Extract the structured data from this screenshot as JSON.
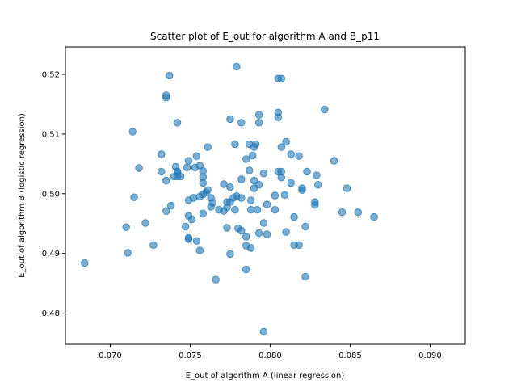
{
  "chart_data": {
    "type": "scatter",
    "title": "Scatter plot of E_out for algorithm A and B_p11",
    "xlabel": "E_out of algorithm A (linear regression)",
    "ylabel": "E_out of algorithm B (logistic regression)",
    "xlim": [
      0.0672,
      0.0922
    ],
    "ylim": [
      0.4748,
      0.5246
    ],
    "xticks": [
      0.07,
      0.075,
      0.08,
      0.085,
      0.09
    ],
    "xtick_labels": [
      "0.070",
      "0.075",
      "0.080",
      "0.085",
      "0.090"
    ],
    "yticks": [
      0.48,
      0.49,
      0.5,
      0.51,
      0.52
    ],
    "ytick_labels": [
      "0.48",
      "0.49",
      "0.50",
      "0.51",
      "0.52"
    ],
    "grid": false,
    "marker_color": "#1f77b4",
    "marker_alpha": 0.6,
    "points": [
      [
        0.0684,
        0.4884
      ],
      [
        0.071,
        0.4944
      ],
      [
        0.0711,
        0.4901
      ],
      [
        0.0714,
        0.5104
      ],
      [
        0.0715,
        0.4994
      ],
      [
        0.0718,
        0.5043
      ],
      [
        0.0722,
        0.4951
      ],
      [
        0.0727,
        0.4914
      ],
      [
        0.0732,
        0.5066
      ],
      [
        0.0732,
        0.5037
      ],
      [
        0.0735,
        0.5165
      ],
      [
        0.0735,
        0.5161
      ],
      [
        0.0735,
        0.5022
      ],
      [
        0.0735,
        0.4971
      ],
      [
        0.0737,
        0.5198
      ],
      [
        0.0738,
        0.498
      ],
      [
        0.074,
        0.5029
      ],
      [
        0.0741,
        0.5045
      ],
      [
        0.0742,
        0.5119
      ],
      [
        0.0742,
        0.5037
      ],
      [
        0.0742,
        0.5029
      ],
      [
        0.0742,
        0.5037
      ],
      [
        0.0744,
        0.5029
      ],
      [
        0.0747,
        0.4945
      ],
      [
        0.0748,
        0.5044
      ],
      [
        0.0749,
        0.5055
      ],
      [
        0.0749,
        0.4989
      ],
      [
        0.0749,
        0.4963
      ],
      [
        0.0749,
        0.4926
      ],
      [
        0.0749,
        0.4924
      ],
      [
        0.0751,
        0.4957
      ],
      [
        0.0752,
        0.4993
      ],
      [
        0.0753,
        0.5044
      ],
      [
        0.0754,
        0.5063
      ],
      [
        0.0754,
        0.4921
      ],
      [
        0.0756,
        0.5047
      ],
      [
        0.0756,
        0.4995
      ],
      [
        0.0756,
        0.4905
      ],
      [
        0.0758,
        0.5038
      ],
      [
        0.0758,
        0.5028
      ],
      [
        0.0758,
        0.5018
      ],
      [
        0.0758,
        0.4999
      ],
      [
        0.0758,
        0.4967
      ],
      [
        0.076,
        0.5002
      ],
      [
        0.0761,
        0.5078
      ],
      [
        0.0761,
        0.5006
      ],
      [
        0.0763,
        0.4993
      ],
      [
        0.0763,
        0.4978
      ],
      [
        0.0764,
        0.4985
      ],
      [
        0.0766,
        0.4856
      ],
      [
        0.0768,
        0.4973
      ],
      [
        0.0771,
        0.5016
      ],
      [
        0.0771,
        0.4971
      ],
      [
        0.0773,
        0.4986
      ],
      [
        0.0773,
        0.4977
      ],
      [
        0.0773,
        0.4943
      ],
      [
        0.0775,
        0.5125
      ],
      [
        0.0775,
        0.5011
      ],
      [
        0.0775,
        0.4986
      ],
      [
        0.0775,
        0.4899
      ],
      [
        0.0777,
        0.4993
      ],
      [
        0.0778,
        0.5083
      ],
      [
        0.0778,
        0.4973
      ],
      [
        0.0779,
        0.5213
      ],
      [
        0.0779,
        0.4996
      ],
      [
        0.078,
        0.4942
      ],
      [
        0.0782,
        0.5119
      ],
      [
        0.0782,
        0.5024
      ],
      [
        0.0782,
        0.4993
      ],
      [
        0.0782,
        0.4938
      ],
      [
        0.0785,
        0.5058
      ],
      [
        0.0785,
        0.4928
      ],
      [
        0.0785,
        0.4913
      ],
      [
        0.0785,
        0.4873
      ],
      [
        0.0787,
        0.5083
      ],
      [
        0.0787,
        0.5039
      ],
      [
        0.0788,
        0.4989
      ],
      [
        0.0788,
        0.4973
      ],
      [
        0.0788,
        0.4909
      ],
      [
        0.0789,
        0.5064
      ],
      [
        0.079,
        0.5078
      ],
      [
        0.079,
        0.5022
      ],
      [
        0.079,
        0.5009
      ],
      [
        0.0791,
        0.5083
      ],
      [
        0.0792,
        0.4973
      ],
      [
        0.0793,
        0.5132
      ],
      [
        0.0793,
        0.5119
      ],
      [
        0.0793,
        0.5015
      ],
      [
        0.0793,
        0.4934
      ],
      [
        0.0796,
        0.5034
      ],
      [
        0.0796,
        0.4951
      ],
      [
        0.0796,
        0.4769
      ],
      [
        0.0798,
        0.4982
      ],
      [
        0.0798,
        0.4932
      ],
      [
        0.0803,
        0.4973
      ],
      [
        0.0803,
        0.4997
      ],
      [
        0.0805,
        0.5136
      ],
      [
        0.0805,
        0.5128
      ],
      [
        0.0805,
        0.5037
      ],
      [
        0.0805,
        0.5193
      ],
      [
        0.0807,
        0.5193
      ],
      [
        0.0807,
        0.5078
      ],
      [
        0.0807,
        0.5037
      ],
      [
        0.0807,
        0.5027
      ],
      [
        0.0809,
        0.4998
      ],
      [
        0.081,
        0.5087
      ],
      [
        0.081,
        0.4936
      ],
      [
        0.0813,
        0.5066
      ],
      [
        0.0813,
        0.5018
      ],
      [
        0.0815,
        0.4961
      ],
      [
        0.0815,
        0.4914
      ],
      [
        0.0818,
        0.5063
      ],
      [
        0.0818,
        0.4914
      ],
      [
        0.082,
        0.5009
      ],
      [
        0.082,
        0.5006
      ],
      [
        0.0822,
        0.4945
      ],
      [
        0.0822,
        0.4861
      ],
      [
        0.0823,
        0.5037
      ],
      [
        0.0828,
        0.4986
      ],
      [
        0.0828,
        0.4981
      ],
      [
        0.0829,
        0.5031
      ],
      [
        0.083,
        0.5015
      ],
      [
        0.0834,
        0.5141
      ],
      [
        0.084,
        0.5055
      ],
      [
        0.0845,
        0.4969
      ],
      [
        0.0848,
        0.5009
      ],
      [
        0.0855,
        0.4969
      ],
      [
        0.0865,
        0.4961
      ]
    ]
  }
}
